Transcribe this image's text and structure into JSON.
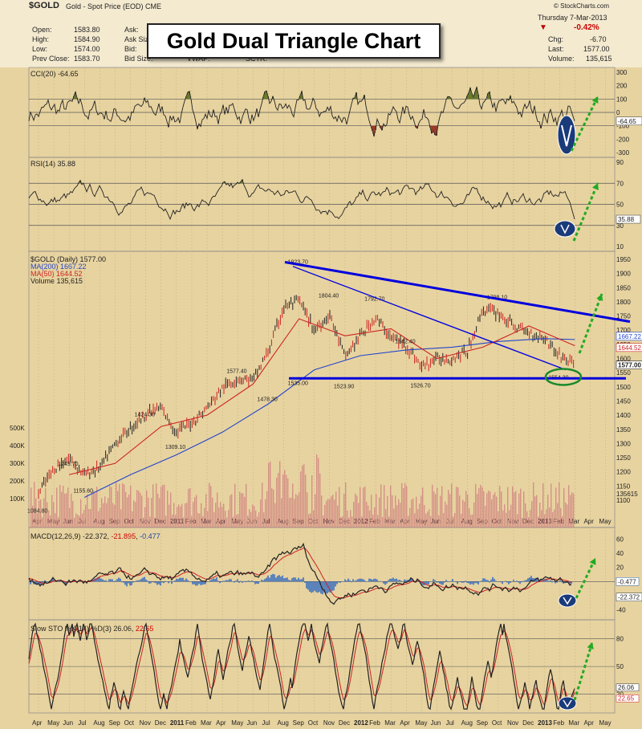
{
  "header": {
    "symbol": "$GOLD",
    "subtitle": "Gold - Spot Price (EOD)  CME",
    "source": "© StockCharts.com",
    "date": "Thursday  7-Mar-2013",
    "open_label": "Open:",
    "open": "1583.80",
    "high_label": "High:",
    "high": "1584.90",
    "low_label": "Low:",
    "low": "1574.00",
    "prevclose_label": "Prev Close:",
    "prevclose": "1583.70",
    "ask_label": "Ask:",
    "ask_size_label": "Ask Size:",
    "bid_label": "Bid:",
    "bid_size_label": "Bid Size:",
    "vwap_label": "VWAP:",
    "sctr_label": "SCTR:",
    "change_pct": "-0.42%",
    "chg_label": "Chg:",
    "chg": "-6.70",
    "last_label": "Last:",
    "last": "1577.00",
    "volume_label": "Volume:",
    "volume": "135,615"
  },
  "colors": {
    "bg": "#e7d3a0",
    "line": "#222222",
    "ma50": "#cc2222",
    "ma200": "#2244cc",
    "trend": "#0000dd",
    "arrow": "#22aa22",
    "fill_pos": "#6a7a2a",
    "fill_neg": "#9a3a2a"
  },
  "title_box": "Gold Dual Triangle Chart",
  "chart_data": [
    {
      "type": "line",
      "title": "CCI(20) -64.65",
      "label": "CCI(20) -64.65",
      "y_ticks": [
        "300",
        "200",
        "100",
        "0",
        "-100",
        "-200",
        "-300"
      ],
      "current_value_label": "-64.65",
      "value_range": [
        -300,
        300
      ],
      "reference_lines": [
        100,
        0,
        -100
      ]
    },
    {
      "type": "line",
      "title": "RSI(14) 35.88",
      "label": "RSI(14) 35.88",
      "y_ticks": [
        "90",
        "70",
        "50",
        "30",
        "10"
      ],
      "current_value_label": "35.88",
      "value_range": [
        10,
        90
      ],
      "reference_lines": [
        70,
        50,
        30
      ]
    },
    {
      "type": "line",
      "title": "$GOLD (Daily) 1577.00",
      "legend": [
        "$GOLD (Daily) 1577.00",
        "MA(200) 1667.22",
        "MA(50) 1644.52",
        "Volume 135,615"
      ],
      "y_ticks": [
        "1950",
        "1900",
        "1850",
        "1800",
        "1750",
        "1700",
        "1650",
        "1600",
        "1550",
        "1500",
        "1450",
        "1400",
        "1350",
        "1300",
        "1250",
        "1200",
        "1150",
        "1100"
      ],
      "ylim": [
        1050,
        1960
      ],
      "series": [
        {
          "name": "$GOLD (Daily) 1577.00",
          "x": [
            "2010-04",
            "2010-05",
            "2010-06",
            "2010-07",
            "2010-08",
            "2010-09",
            "2010-10",
            "2010-11",
            "2010-12",
            "2011-01",
            "2011-02",
            "2011-03",
            "2011-04",
            "2011-05",
            "2011-06",
            "2011-07",
            "2011-08",
            "2011-09",
            "2011-10",
            "2011-11",
            "2011-12",
            "2012-01",
            "2012-02",
            "2012-03",
            "2012-04",
            "2012-05",
            "2012-06",
            "2012-07",
            "2012-08",
            "2012-09",
            "2012-10",
            "2012-11",
            "2012-12",
            "2013-01",
            "2013-02",
            "2013-03"
          ],
          "values": [
            1125,
            1210,
            1249,
            1190,
            1215,
            1300,
            1355,
            1405,
            1424,
            1340,
            1375,
            1425,
            1495,
            1530,
            1525,
            1625,
            1780,
            1805,
            1700,
            1755,
            1605,
            1680,
            1745,
            1675,
            1645,
            1570,
            1600,
            1600,
            1625,
            1775,
            1760,
            1715,
            1690,
            1675,
            1610,
            1577
          ]
        },
        {
          "name": "MA(200) 1667.22",
          "x": [
            "2010-07",
            "2010-10",
            "2011-01",
            "2011-04",
            "2011-07",
            "2011-10",
            "2012-01",
            "2012-04",
            "2012-07",
            "2012-10",
            "2013-01",
            "2013-03"
          ],
          "values": [
            1110,
            1190,
            1260,
            1340,
            1440,
            1560,
            1610,
            1630,
            1640,
            1660,
            1670,
            1667
          ]
        },
        {
          "name": "MA(50) 1644.52",
          "x": [
            "2010-06",
            "2010-09",
            "2010-12",
            "2011-03",
            "2011-06",
            "2011-09",
            "2011-12",
            "2012-03",
            "2012-06",
            "2012-09",
            "2012-12",
            "2013-03"
          ],
          "values": [
            1190,
            1230,
            1360,
            1400,
            1510,
            1740,
            1680,
            1705,
            1600,
            1640,
            1715,
            1645
          ]
        }
      ],
      "annotations": [
        {
          "text": "1084.80",
          "x": "2010-04",
          "y": 1084.8
        },
        {
          "text": "1249.70",
          "x": "2010-06",
          "y": 1249.7
        },
        {
          "text": "1155.60",
          "x": "2010-07",
          "y": 1155.6
        },
        {
          "text": "1424.30",
          "x": "2010-11",
          "y": 1424.3
        },
        {
          "text": "1309.10",
          "x": "2011-01",
          "y": 1309.1
        },
        {
          "text": "1577.40",
          "x": "2011-05",
          "y": 1577.4
        },
        {
          "text": "1478.30",
          "x": "2011-07",
          "y": 1478.3
        },
        {
          "text": "1923.70",
          "x": "2011-09",
          "y": 1923.7
        },
        {
          "text": "1535.00",
          "x": "2011-09",
          "y": 1535.0
        },
        {
          "text": "1804.40",
          "x": "2011-11",
          "y": 1804.4
        },
        {
          "text": "1523.90",
          "x": "2011-12",
          "y": 1523.9
        },
        {
          "text": "1792.70",
          "x": "2012-02",
          "y": 1792.7
        },
        {
          "text": "1642.40",
          "x": "2012-04",
          "y": 1642.4
        },
        {
          "text": "1526.70",
          "x": "2012-05",
          "y": 1526.7
        },
        {
          "text": "1798.10",
          "x": "2012-10",
          "y": 1798.1
        },
        {
          "text": "1554.30",
          "x": "2013-02",
          "y": 1554.3
        }
      ],
      "volume_ticks": [
        "500K",
        "400K",
        "300K",
        "200K",
        "100K"
      ],
      "price_labels": [
        "1667.22",
        "1644.52",
        "1577.00"
      ],
      "volume_label": "135615"
    },
    {
      "type": "line",
      "title": "MACD(12,26,9) -22.372, -21.895, -0.477",
      "label_parts": [
        "MACD(12,26,9) -22.372, ",
        "-21.895",
        ", ",
        "-0.477"
      ],
      "y_ticks": [
        "60",
        "40",
        "20",
        "0",
        "-20",
        "-40"
      ],
      "current_labels": [
        "-0.477",
        "-22.372"
      ],
      "value_range": [
        -45,
        70
      ]
    },
    {
      "type": "line",
      "title": "Slow STO %K(14) %D(3) 26.06, 22.65",
      "label_parts": [
        "Slow STO %K(14) %D(3) 26.06, ",
        "22.65"
      ],
      "y_ticks": [
        "80",
        "50",
        "20"
      ],
      "current_labels": [
        "26.06",
        "22.65"
      ],
      "value_range": [
        0,
        100
      ]
    }
  ],
  "x_axis": {
    "months": [
      "Apr",
      "May",
      "Jun",
      "Jul",
      "Aug",
      "Sep",
      "Oct",
      "Nov",
      "Dec",
      "2011",
      "Feb",
      "Mar",
      "Apr",
      "May",
      "Jun",
      "Jul",
      "Aug",
      "Sep",
      "Oct",
      "Nov",
      "Dec",
      "2012",
      "Feb",
      "Mar",
      "Apr",
      "May",
      "Jun",
      "Jul",
      "Aug",
      "Sep",
      "Oct",
      "Nov",
      "Dec",
      "2013",
      "Feb",
      "Mar",
      "Apr",
      "May"
    ],
    "year_labels": [
      "2011",
      "2012",
      "2013"
    ]
  }
}
